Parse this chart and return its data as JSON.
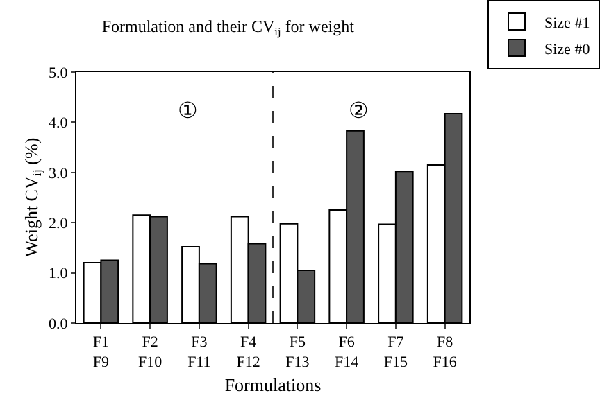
{
  "chart_data": {
    "type": "bar",
    "title": "Formulation and their CV$_{ij}$ for weight",
    "xlabel": "Formulations",
    "ylabel": "Weight CV$_{ij}$ (%)",
    "categories": [
      "F1\nF9",
      "F2\nF10",
      "F3\nF11",
      "F4\nF12",
      "F5\nF13",
      "F6\nF14",
      "F7\nF15",
      "F8\nF16"
    ],
    "series": [
      {
        "name": "Size #1",
        "color": "#ffffff",
        "values": [
          1.2,
          2.15,
          1.52,
          2.12,
          1.98,
          2.25,
          1.97,
          3.15
        ]
      },
      {
        "name": "Size #0",
        "color": "#555555",
        "values": [
          1.25,
          2.12,
          1.18,
          1.58,
          1.05,
          3.83,
          3.02,
          4.17
        ]
      }
    ],
    "ylim": [
      0,
      5
    ],
    "yticks": [
      {
        "value": 0,
        "label": "0.0"
      },
      {
        "value": 1,
        "label": "1.0"
      },
      {
        "value": 2,
        "label": "2.0"
      },
      {
        "value": 3,
        "label": "3.0"
      },
      {
        "value": 4,
        "label": "4.0"
      },
      {
        "value": 5,
        "label": "5.0"
      }
    ],
    "annotations": [
      "①",
      "②"
    ],
    "legend": "top right"
  }
}
